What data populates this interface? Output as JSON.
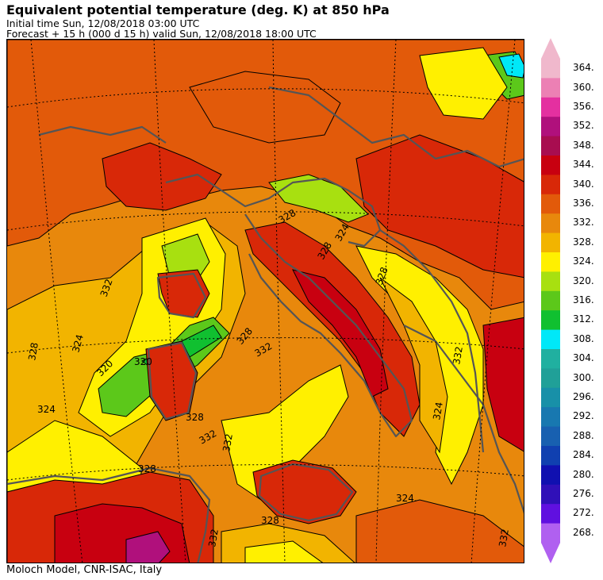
{
  "header": {
    "title": "Equivalent potential temperature (deg. K) at 850 hPa",
    "initial_time": "Initial time  Sun, 12/08/2018  03:00 UTC",
    "forecast": "Forecast  +  15 h  (000 d 15 h)  valid Sun, 12/08/2018 18:00 UTC"
  },
  "footer": {
    "credit": "Moloch Model, CNR-ISAC, Italy"
  },
  "legend": {
    "levels": [
      {
        "label": "364.",
        "color": "#f0b8cc"
      },
      {
        "label": "360.",
        "color": "#ec80b4"
      },
      {
        "label": "356.",
        "color": "#e430a0"
      },
      {
        "label": "352.",
        "color": "#b0107c"
      },
      {
        "label": "348.",
        "color": "#a80d50"
      },
      {
        "label": "344.",
        "color": "#c80010"
      },
      {
        "label": "340.",
        "color": "#d82808"
      },
      {
        "label": "336.",
        "color": "#e25a0a"
      },
      {
        "label": "332.",
        "color": "#e8880c"
      },
      {
        "label": "328.",
        "color": "#f2b400"
      },
      {
        "label": "324.",
        "color": "#fff000"
      },
      {
        "label": "320.",
        "color": "#a8e010"
      },
      {
        "label": "316.",
        "color": "#5cc81a"
      },
      {
        "label": "312.",
        "color": "#10c030"
      },
      {
        "label": "308.",
        "color": "#00e8f8"
      },
      {
        "label": "304.",
        "color": "#20b0a0"
      },
      {
        "label": "300.",
        "color": "#20a098"
      },
      {
        "label": "296.",
        "color": "#1890a8"
      },
      {
        "label": "292.",
        "color": "#1878b0"
      },
      {
        "label": "288.",
        "color": "#1860b0"
      },
      {
        "label": "284.",
        "color": "#1040b0"
      },
      {
        "label": "280.",
        "color": "#1010b0"
      },
      {
        "label": "276.",
        "color": "#3010b8"
      },
      {
        "label": "272.",
        "color": "#6010e0"
      },
      {
        "label": "268.",
        "color": "#b060f0"
      }
    ],
    "cap_top_color": "#f0b8cc",
    "cap_bottom_color": "#b060f0"
  },
  "map": {
    "contour_labels": [
      "328",
      "332",
      "324",
      "320",
      "328",
      "328",
      "332",
      "324",
      "332",
      "328",
      "332",
      "328",
      "328",
      "324.",
      "328",
      "324",
      "332",
      "320",
      "324",
      "332",
      "328",
      "332"
    ]
  }
}
